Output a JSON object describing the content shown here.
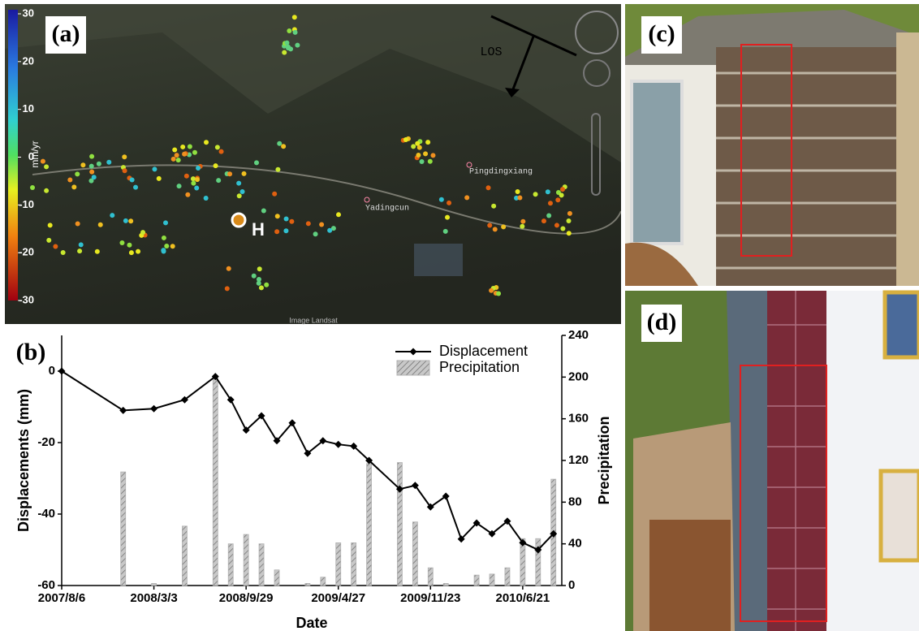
{
  "panels": {
    "a": "(a)",
    "b": "(b)",
    "c": "(c)",
    "d": "(d)"
  },
  "map": {
    "labels": {
      "los": "LOS",
      "pingdingxiang": "Pingdingxiang",
      "yadingcun": "Yadingcun",
      "h": "H",
      "credit": "Image Landsat"
    },
    "colorbar": {
      "label": "mm/yr",
      "lim": [
        -30,
        30
      ],
      "ticks": [
        -30,
        -20,
        -10,
        0,
        10,
        20,
        30
      ]
    }
  },
  "chart_data": {
    "type": "combo",
    "x": [
      "2007/8/6",
      "2007/12/24",
      "2008/3/3",
      "2008/5/12",
      "2008/7/21",
      "2008/8/25",
      "2008/9/29",
      "2008/11/3",
      "2008/12/8",
      "2009/1/12",
      "2009/2/16",
      "2009/3/23",
      "2009/4/27",
      "2009/6/1",
      "2009/7/6",
      "2009/9/14",
      "2009/10/19",
      "2009/11/23",
      "2009/12/28",
      "2010/2/1",
      "2010/3/8",
      "2010/4/12",
      "2010/5/17",
      "2010/6/21",
      "2010/7/26",
      "2010/8/30"
    ],
    "xlim": [
      "2007/8/6",
      "2010/9/18"
    ],
    "xticks": [
      "2007/8/6",
      "2008/3/3",
      "2008/9/29",
      "2009/4/27",
      "2009/11/23",
      "2010/6/21"
    ],
    "ylim": [
      -60,
      10
    ],
    "yticks": [
      -60,
      -40,
      -20,
      0
    ],
    "y2lim": [
      0,
      240
    ],
    "y2ticks": [
      0,
      40,
      80,
      120,
      160,
      200,
      240
    ],
    "xlabel": "Date",
    "ylabel": "Displacements (mm)",
    "y2label": "Precipitation",
    "legend": "upper right",
    "series": [
      {
        "name": "Displacement",
        "type": "line",
        "color": "#000000",
        "values": [
          0,
          -11,
          -10.5,
          -8,
          -1.5,
          -8,
          -16.5,
          -12.5,
          -19.5,
          -14.5,
          -23,
          -19.5,
          -20.5,
          -21,
          -25,
          -33,
          -32,
          -38,
          -35,
          -47,
          -42.5,
          -45.5,
          -42,
          -48,
          -50,
          -45.5
        ]
      },
      {
        "name": "Precipitation",
        "type": "bar",
        "axis": "y2",
        "color": "#b0b0b0",
        "values": [
          null,
          109,
          2,
          57,
          201,
          40,
          49,
          40,
          15,
          null,
          2,
          8,
          41,
          41,
          117,
          118,
          61,
          17,
          2,
          null,
          10,
          11,
          17,
          45,
          45,
          102
        ]
      }
    ]
  }
}
